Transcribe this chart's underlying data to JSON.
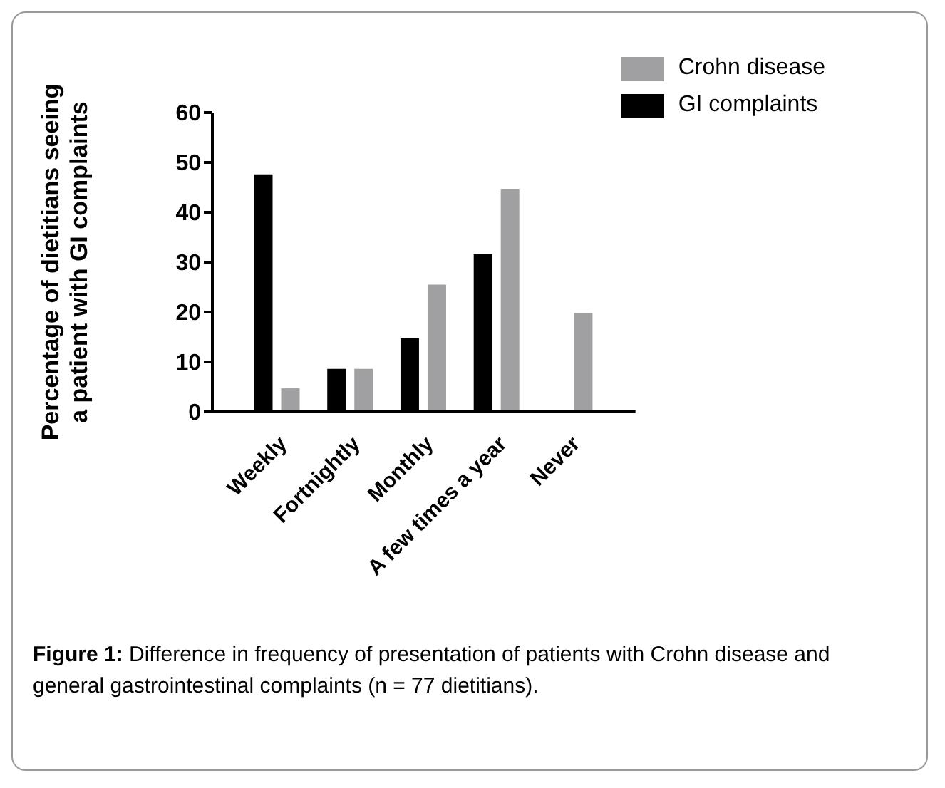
{
  "chart_data": {
    "type": "bar",
    "ylabel": "Percentage of dietitians seeing\na patient with GI complaints",
    "categories": [
      "Weekly",
      "Fortnightly",
      "Monthly",
      "A few times a year",
      "Never"
    ],
    "series": [
      {
        "name": "GI complaints",
        "color": "#000000",
        "values": [
          47.6,
          8.6,
          14.7,
          31.6,
          0
        ]
      },
      {
        "name": "Crohn disease",
        "color": "#a0a0a2",
        "values": [
          4.7,
          8.6,
          25.5,
          44.7,
          19.8
        ]
      }
    ],
    "ylim": [
      0,
      60
    ],
    "yticks": [
      0,
      10,
      20,
      30,
      40,
      50,
      60
    ],
    "grid": false,
    "legend": "top right",
    "annotations": [
      "Figure 1: Difference in frequency of presentation of patients with Crohn disease and general gastrointestinal complaints (n = 77 dietitians)."
    ]
  }
}
